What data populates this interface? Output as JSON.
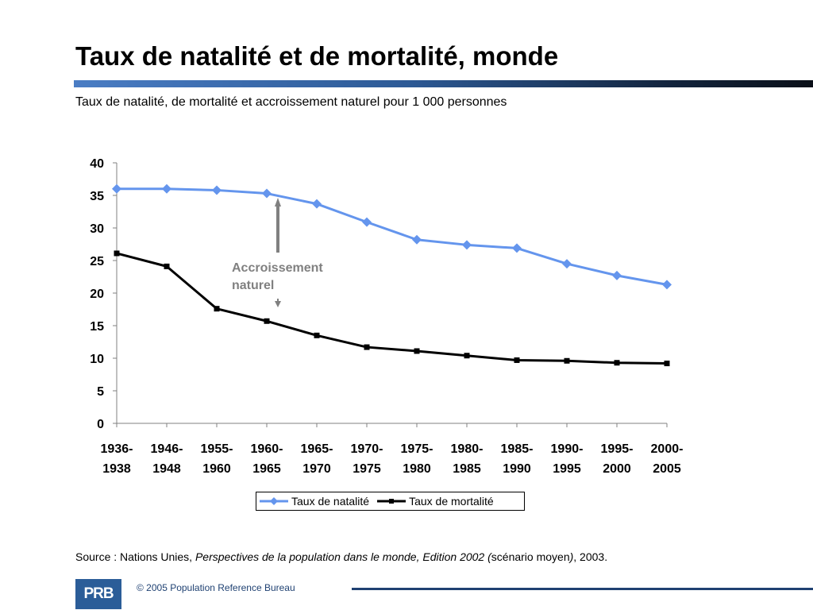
{
  "title": "Taux de natalité et de mortalité, monde",
  "subtitle": "Taux de natalité, de mortalité et accroissement naturel pour 1 000 personnes",
  "annotation": {
    "line1": "Accroissement",
    "line2": "naturel"
  },
  "source": {
    "prefix": "Source : Nations Unies, ",
    "italic": "Perspectives de la population dans le monde, Edition 2002 (",
    "normal": "scénario moyen",
    "italic_close": ")",
    "suffix": ", 2003."
  },
  "footer": {
    "logo_text": "PRB",
    "copyright": "© 2005 Population Reference Bureau"
  },
  "colors": {
    "natalite": "#6495ED",
    "mortalite": "#000000",
    "axis": "#808080",
    "annotation": "#808080"
  },
  "chart_data": {
    "type": "line",
    "categories": [
      "1936-1938",
      "1946-1948",
      "1955-1960",
      "1960-1965",
      "1965-1970",
      "1970-1975",
      "1975-1980",
      "1980-1985",
      "1985-1990",
      "1990-1995",
      "1995-2000",
      "2000-2005"
    ],
    "category_lines": [
      [
        "1936-",
        "1938"
      ],
      [
        "1946-",
        "1948"
      ],
      [
        "1955-",
        "1960"
      ],
      [
        "1960-",
        "1965"
      ],
      [
        "1965-",
        "1970"
      ],
      [
        "1970-",
        "1975"
      ],
      [
        "1975-",
        "1980"
      ],
      [
        "1980-",
        "1985"
      ],
      [
        "1985-",
        "1990"
      ],
      [
        "1990-",
        "1995"
      ],
      [
        "1995-",
        "2000"
      ],
      [
        "2000-",
        "2005"
      ]
    ],
    "series": [
      {
        "name": "Taux de natalité",
        "marker": "diamond",
        "values": [
          36,
          36,
          35.8,
          35.3,
          33.7,
          30.9,
          28.2,
          27.4,
          26.9,
          24.5,
          22.7,
          21.3
        ]
      },
      {
        "name": "Taux de mortalité",
        "marker": "square",
        "values": [
          26.1,
          24.1,
          17.6,
          15.7,
          13.5,
          11.7,
          11.1,
          10.4,
          9.7,
          9.6,
          9.3,
          9.2
        ]
      }
    ],
    "ylim": [
      0,
      40
    ],
    "yticks": [
      0,
      5,
      10,
      15,
      20,
      25,
      30,
      35,
      40
    ],
    "grid": false,
    "legend": "bottom"
  }
}
